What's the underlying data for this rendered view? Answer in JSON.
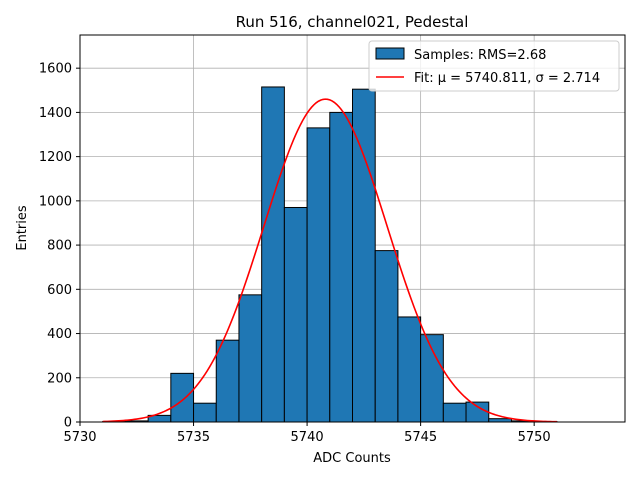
{
  "chart_data": {
    "type": "bar",
    "title": "Run 516, channel021, Pedestal",
    "xlabel": "ADC Counts",
    "ylabel": "Entries",
    "xlim": [
      5730,
      5754
    ],
    "ylim": [
      0,
      1750
    ],
    "xticks": [
      5730,
      5735,
      5740,
      5745,
      5750
    ],
    "yticks": [
      0,
      200,
      400,
      600,
      800,
      1000,
      1200,
      1400,
      1600
    ],
    "grid": true,
    "legend_position": "top-right",
    "bin_edges": [
      5731,
      5732,
      5733,
      5734,
      5735,
      5736,
      5737,
      5738,
      5739,
      5740,
      5741,
      5742,
      5743,
      5744,
      5745,
      5746,
      5747,
      5748,
      5749,
      5750,
      5751
    ],
    "series": [
      {
        "name": "Samples: RMS=2.68",
        "kind": "histogram",
        "color": "#1f77b4",
        "edgecolor": "#000000",
        "values": [
          2,
          5,
          30,
          220,
          85,
          370,
          575,
          1515,
          970,
          1330,
          1400,
          1505,
          775,
          475,
          395,
          85,
          90,
          15,
          5,
          2
        ]
      },
      {
        "name": "Fit: μ = 5740.811, σ = 2.714",
        "kind": "line",
        "color": "#ff0000",
        "mu": 5740.811,
        "sigma": 2.714,
        "amplitude": 1460,
        "x_range": [
          5731,
          5751
        ]
      }
    ]
  }
}
